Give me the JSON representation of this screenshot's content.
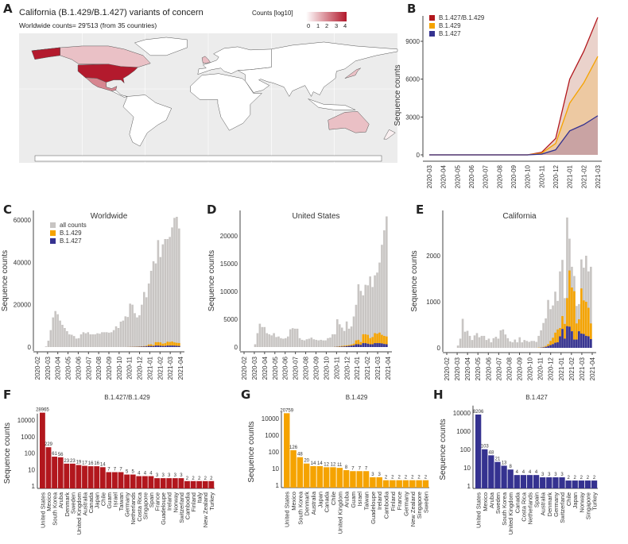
{
  "panel_letters": {
    "a": "A",
    "b": "B",
    "c": "C",
    "d": "D",
    "e": "E",
    "f": "F",
    "g": "G",
    "h": "H"
  },
  "panel_a": {
    "title": "California (B.1.429/B.1.427) variants of concern",
    "subtitle": "Worldwide counts=  29'513 (from 35 countries)",
    "legend_title": "Counts [log10]",
    "legend_ticks": [
      "0",
      "1",
      "2",
      "3",
      "4"
    ],
    "scale_low": "#ffffff",
    "scale_high": "#b2182b"
  },
  "colors": {
    "combined": "#b2171d",
    "b1429": "#f5a300",
    "b1427": "#353290",
    "all": "#c8c5c3",
    "combined_area": "#ead2cb",
    "b1429_area": "#edc9a2",
    "b1427_area": "#c9a3a3"
  },
  "chart_data": [
    {
      "id": "B",
      "type": "area",
      "ylabel": "Sequence counts",
      "x": [
        "2020-03",
        "2020-04",
        "2020-05",
        "2020-06",
        "2020-07",
        "2020-08",
        "2020-09",
        "2020-10",
        "2020-11",
        "2020-12",
        "2021-01",
        "2021-02",
        "2021-03"
      ],
      "yticks": [
        0,
        3000,
        6000,
        9000
      ],
      "series": [
        {
          "name": "B.1.427/B.1.429",
          "values": [
            0,
            0,
            0,
            0,
            0,
            0,
            0,
            0,
            200,
            1300,
            6000,
            8200,
            10900
          ]
        },
        {
          "name": "B.1.429",
          "values": [
            0,
            0,
            0,
            0,
            0,
            0,
            0,
            0,
            130,
            900,
            4100,
            5700,
            7800
          ]
        },
        {
          "name": "B.1.427",
          "values": [
            0,
            0,
            0,
            0,
            0,
            0,
            0,
            0,
            60,
            400,
            1900,
            2400,
            3100
          ]
        }
      ]
    },
    {
      "id": "C",
      "type": "bar",
      "title": "Worldwide",
      "ylabel": "Sequence counts",
      "xticks": [
        "2020-02",
        "2020-03",
        "2020-04",
        "2020-05",
        "2020-06",
        "2020-07",
        "2020-08",
        "2020-09",
        "2020-10",
        "2020-11",
        "2020-12",
        "2021-01",
        "2021-02",
        "2021-03",
        "2021-04"
      ],
      "yticks": [
        0,
        20000,
        40000,
        60000
      ],
      "ymax": 63000,
      "legend": [
        "all counts",
        "B.1.429",
        "B.1.427"
      ],
      "all": [
        300,
        3000,
        8000,
        14000,
        17000,
        15500,
        12500,
        10500,
        9000,
        7500,
        6000,
        5800,
        5200,
        4000,
        4200,
        6000,
        7000,
        6500,
        7000,
        6000,
        6000,
        6000,
        6500,
        6300,
        7000,
        7000,
        7000,
        6800,
        7000,
        8000,
        9800,
        9000,
        12000,
        12500,
        14500,
        14200,
        20500,
        20000,
        16000,
        14000,
        15000,
        20000,
        26000,
        23500,
        30000,
        36000,
        40500,
        39500,
        50500,
        42500,
        48500,
        51000,
        51000,
        52000,
        56500,
        61000,
        61500,
        56000
      ],
      "b1427": [
        0,
        0,
        0,
        0,
        0,
        0,
        0,
        0,
        0,
        0,
        0,
        0,
        0,
        0,
        0,
        0,
        0,
        0,
        0,
        0,
        0,
        0,
        0,
        0,
        0,
        0,
        0,
        0,
        0,
        0,
        0,
        0,
        0,
        0,
        0,
        20,
        40,
        60,
        80,
        100,
        150,
        200,
        250,
        300,
        500,
        500,
        400,
        700,
        700,
        600,
        500,
        500,
        700,
        700,
        700,
        650,
        550,
        500
      ],
      "b1429": [
        0,
        0,
        0,
        0,
        0,
        0,
        0,
        0,
        0,
        0,
        0,
        0,
        0,
        0,
        0,
        0,
        0,
        0,
        0,
        0,
        0,
        0,
        0,
        0,
        0,
        0,
        0,
        0,
        0,
        0,
        0,
        0,
        0,
        0,
        0,
        30,
        60,
        90,
        120,
        150,
        150,
        150,
        200,
        300,
        700,
        800,
        500,
        1600,
        1600,
        1600,
        1100,
        1300,
        1800,
        1700,
        1900,
        1550,
        1450,
        1400
      ]
    },
    {
      "id": "D",
      "type": "bar",
      "title": "United States",
      "ylabel": "Sequence counts",
      "xticks": [
        "2020-02",
        "2020-03",
        "2020-04",
        "2020-05",
        "2020-06",
        "2020-07",
        "2020-08",
        "2020-09",
        "2020-10",
        "2020-11",
        "2020-12",
        "2021-01",
        "2021-02",
        "2021-03",
        "2021-04"
      ],
      "yticks": [
        0,
        5000,
        10000,
        15000,
        20000
      ],
      "ymax": 24500,
      "all": [
        0,
        500,
        2500,
        4200,
        3600,
        3600,
        2500,
        2300,
        2100,
        2500,
        1800,
        1900,
        1600,
        1500,
        1600,
        1900,
        3200,
        3400,
        3300,
        3300,
        1600,
        1300,
        1200,
        1400,
        1500,
        1700,
        1400,
        1300,
        1200,
        1300,
        1200,
        1200,
        1600,
        1700,
        2300,
        2300,
        5000,
        4100,
        3500,
        2900,
        4600,
        3300,
        3700,
        5500,
        7600,
        11300,
        10100,
        9300,
        11200,
        11100,
        12700,
        10800,
        12900,
        13400,
        15200,
        18400,
        21000,
        23500
      ],
      "b1427": [
        0,
        0,
        0,
        0,
        0,
        0,
        0,
        0,
        0,
        0,
        0,
        0,
        0,
        0,
        0,
        0,
        0,
        0,
        0,
        0,
        0,
        0,
        0,
        0,
        0,
        0,
        0,
        0,
        0,
        0,
        0,
        0,
        0,
        0,
        0,
        20,
        40,
        60,
        80,
        100,
        150,
        200,
        250,
        300,
        500,
        500,
        400,
        700,
        700,
        600,
        500,
        500,
        700,
        700,
        700,
        650,
        550,
        500
      ],
      "b1429": [
        0,
        0,
        0,
        0,
        0,
        0,
        0,
        0,
        0,
        0,
        0,
        0,
        0,
        0,
        0,
        0,
        0,
        0,
        0,
        0,
        0,
        0,
        0,
        0,
        0,
        0,
        0,
        0,
        0,
        0,
        0,
        0,
        0,
        0,
        0,
        30,
        60,
        90,
        120,
        150,
        150,
        150,
        200,
        300,
        700,
        800,
        500,
        1600,
        1600,
        1600,
        1100,
        1300,
        1800,
        1700,
        1900,
        1550,
        1450,
        1400
      ]
    },
    {
      "id": "E",
      "type": "bar",
      "title": "California",
      "ylabel": "Sequence counts",
      "xticks": [
        "2020-02",
        "2020-03",
        "2020-04",
        "2020-05",
        "2020-06",
        "2020-07",
        "2020-08",
        "2020-09",
        "2020-10",
        "2020-11",
        "2020-12",
        "2021-01",
        "2021-02",
        "2021-03",
        "2021-04"
      ],
      "yticks": [
        0,
        1000,
        2000
      ],
      "ymax": 2900,
      "all": [
        0,
        50,
        200,
        630,
        350,
        370,
        260,
        170,
        270,
        320,
        230,
        260,
        260,
        170,
        200,
        120,
        210,
        240,
        200,
        380,
        400,
        290,
        210,
        140,
        120,
        180,
        120,
        230,
        120,
        170,
        150,
        130,
        150,
        150,
        130,
        260,
        380,
        540,
        640,
        1040,
        840,
        920,
        1220,
        1020,
        1660,
        1910,
        1080,
        2830,
        2370,
        1760,
        1560,
        910,
        950,
        1920,
        1740,
        2000,
        1660,
        1760
      ],
      "b1427": [
        0,
        0,
        0,
        0,
        0,
        0,
        0,
        0,
        0,
        0,
        0,
        0,
        0,
        0,
        0,
        0,
        0,
        0,
        0,
        0,
        0,
        0,
        0,
        0,
        0,
        0,
        0,
        0,
        0,
        0,
        0,
        0,
        0,
        0,
        0,
        0,
        5,
        10,
        20,
        40,
        60,
        80,
        110,
        120,
        250,
        410,
        200,
        470,
        460,
        360,
        180,
        180,
        360,
        310,
        300,
        260,
        250,
        190
      ],
      "b1429": [
        0,
        0,
        0,
        0,
        0,
        0,
        0,
        0,
        0,
        0,
        0,
        0,
        0,
        0,
        0,
        0,
        0,
        0,
        0,
        0,
        0,
        0,
        0,
        0,
        0,
        0,
        0,
        0,
        0,
        0,
        0,
        0,
        0,
        0,
        0,
        5,
        5,
        10,
        20,
        40,
        90,
        140,
        220,
        280,
        180,
        280,
        320,
        610,
        1220,
        950,
        1050,
        350,
        260,
        980,
        730,
        740,
        620,
        340
      ]
    },
    {
      "id": "F",
      "type": "bar",
      "scale": "log10",
      "title": "B.1.427/B.1.429",
      "ylabel": "Sequence counts",
      "yticks": [
        "1",
        "10",
        "100",
        "1000",
        "10000"
      ],
      "categories": [
        "United States",
        "Mexico",
        "South Korea",
        "Aruba",
        "Denmark",
        "Sweden",
        "United Kingdom",
        "Australia",
        "Canada",
        "Japan",
        "Chile",
        "Guam",
        "Israel",
        "Taiwan",
        "Germany",
        "Netherlands",
        "Costa Rica",
        "Singapore",
        "Spain",
        "France",
        "Guadeloupe",
        "Ireland",
        "Norway",
        "Switzerland",
        "Cambodia",
        "Finland",
        "Italy",
        "New Zealand",
        "Turkey"
      ],
      "values": [
        28965,
        229,
        61,
        56,
        23,
        23,
        19,
        17,
        16,
        16,
        14,
        7,
        7,
        7,
        5,
        5,
        4,
        4,
        4,
        3,
        3,
        3,
        3,
        3,
        2,
        2,
        2,
        2,
        2
      ]
    },
    {
      "id": "G",
      "type": "bar",
      "scale": "log10",
      "title": "B.1.429",
      "ylabel": "Sequence counts",
      "yticks": [
        "1",
        "10",
        "100",
        "1000",
        "10000"
      ],
      "categories": [
        "United States",
        "Mexico",
        "South Korea",
        "Denmark",
        "Australia",
        "Japan",
        "Canada",
        "Chile",
        "United Kingdom",
        "Aruba",
        "Guam",
        "Israel",
        "Taiwan",
        "Guadeloupe",
        "Ireland",
        "Cambodia",
        "Finland",
        "France",
        "Germany",
        "New Zealand",
        "Singapore",
        "Sweden"
      ],
      "values": [
        20759,
        126,
        48,
        20,
        14,
        14,
        12,
        12,
        11,
        8,
        7,
        7,
        7,
        3,
        3,
        2,
        2,
        2,
        2,
        2,
        2,
        2
      ]
    },
    {
      "id": "H",
      "type": "bar",
      "scale": "log10",
      "title": "B.1.427",
      "ylabel": "Sequence counts",
      "yticks": [
        "1",
        "10",
        "100",
        "1000",
        "10000"
      ],
      "categories": [
        "United States",
        "Mexico",
        "Aruba",
        "Sweden",
        "South Korea",
        "United Kingdom",
        "Canada",
        "Costa Rica",
        "Netherlands",
        "Spain",
        "Australia",
        "Denmark",
        "Germany",
        "Switzerland",
        "Chile",
        "Japan",
        "Norway",
        "Singapore",
        "Turkey"
      ],
      "values": [
        8206,
        103,
        48,
        21,
        13,
        8,
        4,
        4,
        4,
        4,
        3,
        3,
        3,
        3,
        2,
        2,
        2,
        2,
        2
      ]
    }
  ]
}
